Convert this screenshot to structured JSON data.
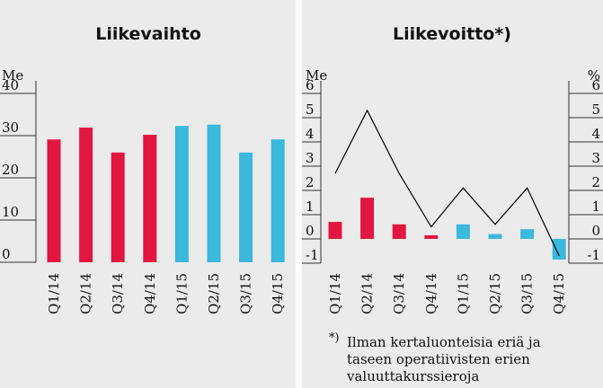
{
  "chart_data": [
    {
      "type": "bar",
      "title": "Liikevaihto",
      "ylabel": "Me",
      "categories": [
        "Q1/14",
        "Q2/14",
        "Q3/14",
        "Q4/14",
        "Q1/15",
        "Q2/15",
        "Q3/15",
        "Q4/15"
      ],
      "values": [
        29.1,
        31.9,
        26,
        30.2,
        32.3,
        32.6,
        26,
        29.1
      ],
      "colors": [
        "#e2173f",
        "#e2173f",
        "#e2173f",
        "#e2173f",
        "#3bb8dd",
        "#3bb8dd",
        "#3bb8dd",
        "#3bb8dd"
      ],
      "ylim": [
        0,
        40
      ],
      "yticks": [
        0,
        10,
        20,
        30,
        40
      ]
    },
    {
      "type": "bar_line",
      "title": "Liikevoitto*)",
      "ylabel": "Me",
      "y2label": "%",
      "categories": [
        "Q1/14",
        "Q2/14",
        "Q3/14",
        "Q4/14",
        "Q1/15",
        "Q2/15",
        "Q3/15",
        "Q4/15"
      ],
      "values": [
        0.7,
        1.7,
        0.6,
        0.15,
        0.6,
        0.2,
        0.4,
        -0.85
      ],
      "colors": [
        "#e2173f",
        "#e2173f",
        "#e2173f",
        "#e2173f",
        "#3bb8dd",
        "#3bb8dd",
        "#3bb8dd",
        "#3bb8dd"
      ],
      "line_values": [
        2.7,
        5.3,
        2.7,
        0.5,
        2.1,
        0.6,
        2.1,
        -0.7
      ],
      "line_color": "#000000",
      "ylim": [
        -1,
        6
      ],
      "yticks": [
        -1,
        0,
        1,
        2,
        3,
        4,
        5,
        6
      ],
      "y2lim": [
        -1,
        6
      ],
      "y2ticks": [
        -1,
        0,
        1,
        2,
        3,
        4,
        5,
        6
      ],
      "footnote_marker": "*)",
      "footnote_lines": [
        "Ilman kertaluonteisia eriä ja",
        "taseen operatiivisten erien",
        "valuuttakurssieroja"
      ]
    }
  ]
}
